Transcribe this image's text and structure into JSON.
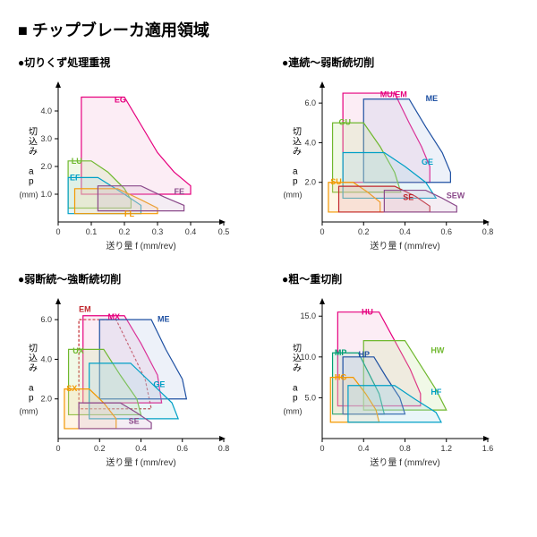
{
  "main_title": "■ チップブレーカ適用領域",
  "xlabel": "送り量 f  (mm/rev)",
  "ylabel": "切込み ap",
  "yunit": "(mm)",
  "charts": [
    {
      "title": "●切りくず処理重視",
      "xlim": [
        0,
        0.5
      ],
      "xticks": [
        0,
        0.1,
        0.2,
        0.3,
        0.4,
        0.5
      ],
      "ylim": [
        0,
        5
      ],
      "yticks": [
        1.0,
        2.0,
        3.0,
        4.0
      ],
      "regions": [
        {
          "label": "EG",
          "color": "#e6007e",
          "fill": "#f5b8d9",
          "poly": [
            [
              0.07,
              1.0
            ],
            [
              0.07,
              4.5
            ],
            [
              0.2,
              4.5
            ],
            [
              0.25,
              3.5
            ],
            [
              0.3,
              2.5
            ],
            [
              0.35,
              1.8
            ],
            [
              0.4,
              1.3
            ],
            [
              0.4,
              1.0
            ]
          ],
          "lx": 0.17,
          "ly": 4.3
        },
        {
          "label": "LU",
          "color": "#6fb82e",
          "fill": "#c8e6a0",
          "poly": [
            [
              0.03,
              0.5
            ],
            [
              0.03,
              2.2
            ],
            [
              0.1,
              2.2
            ],
            [
              0.15,
              1.8
            ],
            [
              0.2,
              1.2
            ],
            [
              0.22,
              0.8
            ],
            [
              0.22,
              0.5
            ]
          ],
          "lx": 0.04,
          "ly": 2.1
        },
        {
          "label": "EF",
          "color": "#00a0c6",
          "fill": "#a8dde8",
          "poly": [
            [
              0.03,
              0.3
            ],
            [
              0.03,
              1.6
            ],
            [
              0.12,
              1.6
            ],
            [
              0.2,
              1.0
            ],
            [
              0.25,
              0.6
            ],
            [
              0.25,
              0.3
            ]
          ],
          "lx": 0.035,
          "ly": 1.5
        },
        {
          "label": "FL",
          "color": "#f39800",
          "fill": "#ffd89b",
          "poly": [
            [
              0.05,
              0.3
            ],
            [
              0.05,
              1.2
            ],
            [
              0.18,
              1.2
            ],
            [
              0.25,
              0.8
            ],
            [
              0.3,
              0.5
            ],
            [
              0.3,
              0.3
            ]
          ],
          "lx": 0.2,
          "ly": 0.2
        },
        {
          "label": "FE",
          "color": "#8b4a8b",
          "fill": "#d4b8d4",
          "poly": [
            [
              0.12,
              0.4
            ],
            [
              0.12,
              1.3
            ],
            [
              0.25,
              1.3
            ],
            [
              0.32,
              0.9
            ],
            [
              0.38,
              0.6
            ],
            [
              0.38,
              0.4
            ]
          ],
          "lx": 0.35,
          "ly": 1.0
        }
      ]
    },
    {
      "title": "●連続～弱断続切削",
      "xlim": [
        0,
        0.8
      ],
      "xticks": [
        0,
        0.2,
        0.4,
        0.6,
        0.8
      ],
      "ylim": [
        0,
        7
      ],
      "yticks": [
        2.0,
        4.0,
        6.0
      ],
      "regions": [
        {
          "label": "MU/EM",
          "color": "#e6007e",
          "fill": "#f5b8d9",
          "poly": [
            [
              0.1,
              2.0
            ],
            [
              0.1,
              6.5
            ],
            [
              0.35,
              6.5
            ],
            [
              0.42,
              5.0
            ],
            [
              0.48,
              3.8
            ],
            [
              0.52,
              2.8
            ],
            [
              0.52,
              2.0
            ]
          ],
          "lx": 0.28,
          "ly": 6.3
        },
        {
          "label": "ME",
          "color": "#1e50a2",
          "fill": "#b8c8e6",
          "poly": [
            [
              0.2,
              2.0
            ],
            [
              0.2,
              6.2
            ],
            [
              0.42,
              6.2
            ],
            [
              0.5,
              4.8
            ],
            [
              0.58,
              3.5
            ],
            [
              0.62,
              2.5
            ],
            [
              0.62,
              2.0
            ]
          ],
          "lx": 0.5,
          "ly": 6.1
        },
        {
          "label": "GU",
          "color": "#6fb82e",
          "fill": "#c8e6a0",
          "poly": [
            [
              0.05,
              1.5
            ],
            [
              0.05,
              5.0
            ],
            [
              0.2,
              5.0
            ],
            [
              0.28,
              3.8
            ],
            [
              0.35,
              2.5
            ],
            [
              0.38,
              1.5
            ]
          ],
          "lx": 0.08,
          "ly": 4.9
        },
        {
          "label": "GE",
          "color": "#00a0c6",
          "fill": "#a8dde8",
          "poly": [
            [
              0.1,
              1.2
            ],
            [
              0.1,
              3.5
            ],
            [
              0.3,
              3.5
            ],
            [
              0.4,
              2.8
            ],
            [
              0.5,
              2.0
            ],
            [
              0.55,
              1.2
            ]
          ],
          "lx": 0.48,
          "ly": 2.9
        },
        {
          "label": "SU",
          "color": "#f39800",
          "fill": "#ffd89b",
          "poly": [
            [
              0.03,
              0.5
            ],
            [
              0.03,
              2.0
            ],
            [
              0.15,
              2.0
            ],
            [
              0.22,
              1.5
            ],
            [
              0.28,
              1.0
            ],
            [
              0.28,
              0.5
            ]
          ],
          "lx": 0.04,
          "ly": 1.9
        },
        {
          "label": "SE",
          "color": "#c1272d",
          "fill": "#e8a8a8",
          "poly": [
            [
              0.08,
              0.5
            ],
            [
              0.08,
              1.8
            ],
            [
              0.35,
              1.8
            ],
            [
              0.45,
              1.3
            ],
            [
              0.52,
              0.8
            ],
            [
              0.52,
              0.5
            ]
          ],
          "lx": 0.39,
          "ly": 1.1
        },
        {
          "label": "SEW",
          "color": "#8b4a8b",
          "fill": "#d4b8d4",
          "poly": [
            [
              0.3,
              0.5
            ],
            [
              0.3,
              1.6
            ],
            [
              0.5,
              1.6
            ],
            [
              0.58,
              1.2
            ],
            [
              0.65,
              0.8
            ],
            [
              0.65,
              0.5
            ]
          ],
          "lx": 0.6,
          "ly": 1.2
        }
      ]
    },
    {
      "title": "●弱断続～強断続切削",
      "xlim": [
        0,
        0.8
      ],
      "xticks": [
        0,
        0.2,
        0.4,
        0.6,
        0.8
      ],
      "ylim": [
        0,
        7
      ],
      "yticks": [
        2.0,
        4.0,
        6.0
      ],
      "regions": [
        {
          "label": "EM",
          "color": "#c1272d",
          "fill": "none",
          "dash": true,
          "poly": [
            [
              0.1,
              1.5
            ],
            [
              0.1,
              6.0
            ],
            [
              0.28,
              6.0
            ],
            [
              0.35,
              4.5
            ],
            [
              0.42,
              3.0
            ],
            [
              0.45,
              1.5
            ]
          ],
          "lx": 0.1,
          "ly": 6.4
        },
        {
          "label": "MX",
          "color": "#e6007e",
          "fill": "#f5b8d9",
          "poly": [
            [
              0.12,
              1.8
            ],
            [
              0.12,
              6.2
            ],
            [
              0.32,
              6.2
            ],
            [
              0.4,
              4.8
            ],
            [
              0.48,
              3.2
            ],
            [
              0.5,
              1.8
            ]
          ],
          "lx": 0.24,
          "ly": 6.0
        },
        {
          "label": "ME",
          "color": "#1e50a2",
          "fill": "#b8c8e6",
          "poly": [
            [
              0.2,
              2.0
            ],
            [
              0.2,
              6.0
            ],
            [
              0.45,
              6.0
            ],
            [
              0.52,
              4.5
            ],
            [
              0.6,
              3.0
            ],
            [
              0.62,
              2.0
            ]
          ],
          "lx": 0.48,
          "ly": 5.9
        },
        {
          "label": "UX",
          "color": "#6fb82e",
          "fill": "#c8e6a0",
          "poly": [
            [
              0.05,
              1.2
            ],
            [
              0.05,
              4.5
            ],
            [
              0.22,
              4.5
            ],
            [
              0.3,
              3.2
            ],
            [
              0.38,
              2.0
            ],
            [
              0.4,
              1.2
            ]
          ],
          "lx": 0.07,
          "ly": 4.3
        },
        {
          "label": "GE",
          "color": "#00a0c6",
          "fill": "#a8dde8",
          "poly": [
            [
              0.15,
              1.0
            ],
            [
              0.15,
              3.8
            ],
            [
              0.35,
              3.8
            ],
            [
              0.45,
              2.8
            ],
            [
              0.55,
              1.8
            ],
            [
              0.58,
              1.0
            ]
          ],
          "lx": 0.46,
          "ly": 2.6
        },
        {
          "label": "SX",
          "color": "#f39800",
          "fill": "#ffd89b",
          "poly": [
            [
              0.03,
              0.5
            ],
            [
              0.03,
              2.5
            ],
            [
              0.15,
              2.5
            ],
            [
              0.22,
              1.8
            ],
            [
              0.28,
              1.0
            ],
            [
              0.28,
              0.5
            ]
          ],
          "lx": 0.04,
          "ly": 2.4
        },
        {
          "label": "SE",
          "color": "#8b4a8b",
          "fill": "#d4b8d4",
          "poly": [
            [
              0.1,
              0.5
            ],
            [
              0.1,
              1.8
            ],
            [
              0.3,
              1.8
            ],
            [
              0.38,
              1.3
            ],
            [
              0.45,
              0.8
            ],
            [
              0.45,
              0.5
            ]
          ],
          "lx": 0.34,
          "ly": 0.75
        }
      ]
    },
    {
      "title": "●粗～重切削",
      "xlim": [
        0,
        1.6
      ],
      "xticks": [
        0,
        0.4,
        0.8,
        1.2,
        1.6
      ],
      "ylim": [
        0,
        17
      ],
      "yticks": [
        5.0,
        10.0,
        15.0
      ],
      "regions": [
        {
          "label": "HU",
          "color": "#e6007e",
          "fill": "#f5b8d9",
          "poly": [
            [
              0.15,
              4.0
            ],
            [
              0.15,
              15.5
            ],
            [
              0.55,
              15.5
            ],
            [
              0.7,
              12.0
            ],
            [
              0.85,
              8.5
            ],
            [
              0.95,
              5.5
            ],
            [
              0.95,
              4.0
            ]
          ],
          "lx": 0.38,
          "ly": 15.2
        },
        {
          "label": "HW",
          "color": "#6fb82e",
          "fill": "#c8e6a0",
          "poly": [
            [
              0.4,
              3.5
            ],
            [
              0.4,
              12.0
            ],
            [
              0.8,
              12.0
            ],
            [
              0.95,
              9.0
            ],
            [
              1.1,
              6.0
            ],
            [
              1.2,
              3.5
            ]
          ],
          "lx": 1.05,
          "ly": 10.5
        },
        {
          "label": "MP",
          "color": "#009e73",
          "fill": "#a0d8c0",
          "poly": [
            [
              0.1,
              3.0
            ],
            [
              0.1,
              10.5
            ],
            [
              0.35,
              10.5
            ],
            [
              0.45,
              8.0
            ],
            [
              0.55,
              5.5
            ],
            [
              0.6,
              3.0
            ]
          ],
          "lx": 0.12,
          "ly": 10.2
        },
        {
          "label": "HP",
          "color": "#1e50a2",
          "fill": "#b8c8e6",
          "poly": [
            [
              0.2,
              3.0
            ],
            [
              0.2,
              10.0
            ],
            [
              0.5,
              10.0
            ],
            [
              0.62,
              7.5
            ],
            [
              0.75,
              5.0
            ],
            [
              0.8,
              3.0
            ]
          ],
          "lx": 0.35,
          "ly": 10.0
        },
        {
          "label": "HG",
          "color": "#f39800",
          "fill": "#ffd89b",
          "poly": [
            [
              0.08,
              2.0
            ],
            [
              0.08,
              7.5
            ],
            [
              0.3,
              7.5
            ],
            [
              0.42,
              5.5
            ],
            [
              0.52,
              3.5
            ],
            [
              0.55,
              2.0
            ]
          ],
          "lx": 0.12,
          "ly": 7.2
        },
        {
          "label": "HF",
          "color": "#00a0c6",
          "fill": "#a8dde8",
          "poly": [
            [
              0.25,
              2.0
            ],
            [
              0.25,
              6.5
            ],
            [
              0.7,
              6.5
            ],
            [
              0.9,
              4.8
            ],
            [
              1.1,
              3.2
            ],
            [
              1.15,
              2.0
            ]
          ],
          "lx": 1.05,
          "ly": 5.4
        }
      ]
    }
  ]
}
